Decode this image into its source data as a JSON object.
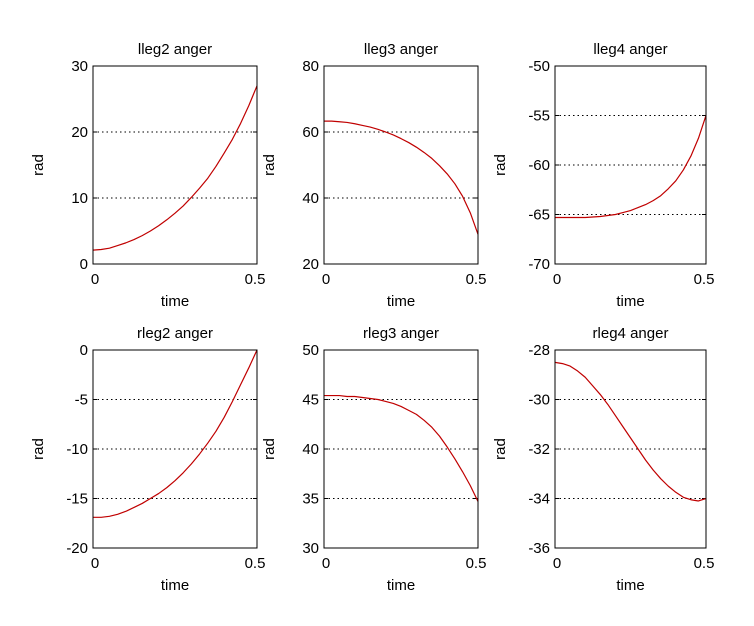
{
  "chart_data": [
    {
      "type": "line",
      "title": "lleg2 anger",
      "xlabel": "time",
      "ylabel": "rad",
      "xlim": [
        0,
        0.5
      ],
      "ylim": [
        0,
        30
      ],
      "yticks": [
        0,
        10,
        20,
        30
      ],
      "xticks": [
        0,
        0.5
      ],
      "xtick_labels": [
        "0",
        "0.5"
      ],
      "grid": "horizontal-dotted",
      "color": "#c00000",
      "series": [
        {
          "x": [
            0,
            0.025,
            0.05,
            0.075,
            0.1,
            0.125,
            0.15,
            0.175,
            0.2,
            0.225,
            0.25,
            0.275,
            0.3,
            0.325,
            0.35,
            0.375,
            0.4,
            0.425,
            0.45,
            0.475,
            0.5
          ],
          "values": [
            2.1,
            2.2,
            2.4,
            2.8,
            3.2,
            3.7,
            4.3,
            5.0,
            5.8,
            6.7,
            7.7,
            8.8,
            10.1,
            11.5,
            13.0,
            14.8,
            16.8,
            18.9,
            21.3,
            24.0,
            27.0
          ]
        }
      ]
    },
    {
      "type": "line",
      "title": "lleg3 anger",
      "xlabel": "time",
      "ylabel": "rad",
      "xlim": [
        0,
        0.5
      ],
      "ylim": [
        20,
        80
      ],
      "yticks": [
        20,
        40,
        60,
        80
      ],
      "xticks": [
        0,
        0.5
      ],
      "xtick_labels": [
        "0",
        "0.5"
      ],
      "grid": "horizontal-dotted",
      "color": "#c00000",
      "series": [
        {
          "x": [
            0,
            0.025,
            0.05,
            0.075,
            0.1,
            0.125,
            0.15,
            0.175,
            0.2,
            0.225,
            0.25,
            0.275,
            0.3,
            0.325,
            0.35,
            0.375,
            0.4,
            0.425,
            0.45,
            0.475,
            0.5
          ],
          "values": [
            63.3,
            63.3,
            63.1,
            62.9,
            62.5,
            62.0,
            61.5,
            60.8,
            60.0,
            59.1,
            58.0,
            56.8,
            55.4,
            53.8,
            52.0,
            49.8,
            47.3,
            44.3,
            40.5,
            35.5,
            29.0
          ]
        }
      ]
    },
    {
      "type": "line",
      "title": "lleg4 anger",
      "xlabel": "time",
      "ylabel": "rad",
      "xlim": [
        0,
        0.5
      ],
      "ylim": [
        -70,
        -50
      ],
      "yticks": [
        -70,
        -65,
        -60,
        -55,
        -50
      ],
      "xticks": [
        0,
        0.5
      ],
      "xtick_labels": [
        "0",
        "0.5"
      ],
      "grid": "horizontal-dotted",
      "color": "#c00000",
      "series": [
        {
          "x": [
            0,
            0.025,
            0.05,
            0.075,
            0.1,
            0.125,
            0.15,
            0.175,
            0.2,
            0.225,
            0.25,
            0.275,
            0.3,
            0.325,
            0.35,
            0.375,
            0.4,
            0.425,
            0.45,
            0.475,
            0.5
          ],
          "values": [
            -65.3,
            -65.3,
            -65.3,
            -65.3,
            -65.3,
            -65.25,
            -65.2,
            -65.1,
            -65.0,
            -64.8,
            -64.6,
            -64.3,
            -64.0,
            -63.6,
            -63.1,
            -62.4,
            -61.6,
            -60.5,
            -59.1,
            -57.3,
            -55.0
          ]
        }
      ]
    },
    {
      "type": "line",
      "title": "rleg2 anger",
      "xlabel": "time",
      "ylabel": "rad",
      "xlim": [
        0,
        0.5
      ],
      "ylim": [
        -20,
        0
      ],
      "yticks": [
        -20,
        -15,
        -10,
        -5,
        0
      ],
      "xticks": [
        0,
        0.5
      ],
      "xtick_labels": [
        "0",
        "0.5"
      ],
      "grid": "horizontal-dotted",
      "color": "#c00000",
      "series": [
        {
          "x": [
            0,
            0.025,
            0.05,
            0.075,
            0.1,
            0.125,
            0.15,
            0.175,
            0.2,
            0.225,
            0.25,
            0.275,
            0.3,
            0.325,
            0.35,
            0.375,
            0.4,
            0.425,
            0.45,
            0.475,
            0.5
          ],
          "values": [
            -16.9,
            -16.9,
            -16.8,
            -16.6,
            -16.3,
            -15.9,
            -15.5,
            -15.0,
            -14.5,
            -13.9,
            -13.2,
            -12.4,
            -11.5,
            -10.5,
            -9.4,
            -8.2,
            -6.8,
            -5.2,
            -3.5,
            -1.8,
            0.0
          ]
        }
      ]
    },
    {
      "type": "line",
      "title": "rleg3 anger",
      "xlabel": "time",
      "ylabel": "rad",
      "xlim": [
        0,
        0.5
      ],
      "ylim": [
        30,
        50
      ],
      "yticks": [
        30,
        35,
        40,
        45,
        50
      ],
      "xticks": [
        0,
        0.5
      ],
      "xtick_labels": [
        "0",
        "0.5"
      ],
      "grid": "horizontal-dotted",
      "color": "#c00000",
      "series": [
        {
          "x": [
            0,
            0.025,
            0.05,
            0.075,
            0.1,
            0.125,
            0.15,
            0.175,
            0.2,
            0.225,
            0.25,
            0.275,
            0.3,
            0.325,
            0.35,
            0.375,
            0.4,
            0.425,
            0.45,
            0.475,
            0.5
          ],
          "values": [
            45.4,
            45.4,
            45.4,
            45.3,
            45.3,
            45.2,
            45.1,
            45.0,
            44.8,
            44.6,
            44.3,
            43.9,
            43.5,
            42.9,
            42.2,
            41.3,
            40.2,
            39.0,
            37.7,
            36.3,
            34.7
          ]
        }
      ]
    },
    {
      "type": "line",
      "title": "rleg4 anger",
      "xlabel": "time",
      "ylabel": "rad",
      "xlim": [
        0,
        0.5
      ],
      "ylim": [
        -36,
        -28
      ],
      "yticks": [
        -36,
        -34,
        -32,
        -30,
        -28
      ],
      "xticks": [
        0,
        0.5
      ],
      "xtick_labels": [
        "0",
        "0.5"
      ],
      "grid": "horizontal-dotted",
      "color": "#c00000",
      "series": [
        {
          "x": [
            0,
            0.025,
            0.05,
            0.075,
            0.1,
            0.125,
            0.15,
            0.175,
            0.2,
            0.225,
            0.25,
            0.275,
            0.3,
            0.325,
            0.35,
            0.375,
            0.4,
            0.425,
            0.45,
            0.475,
            0.5
          ],
          "values": [
            -28.5,
            -28.55,
            -28.65,
            -28.85,
            -29.1,
            -29.45,
            -29.8,
            -30.2,
            -30.65,
            -31.1,
            -31.55,
            -32.0,
            -32.45,
            -32.85,
            -33.2,
            -33.5,
            -33.75,
            -33.95,
            -34.05,
            -34.1,
            -34.0
          ]
        }
      ]
    }
  ]
}
